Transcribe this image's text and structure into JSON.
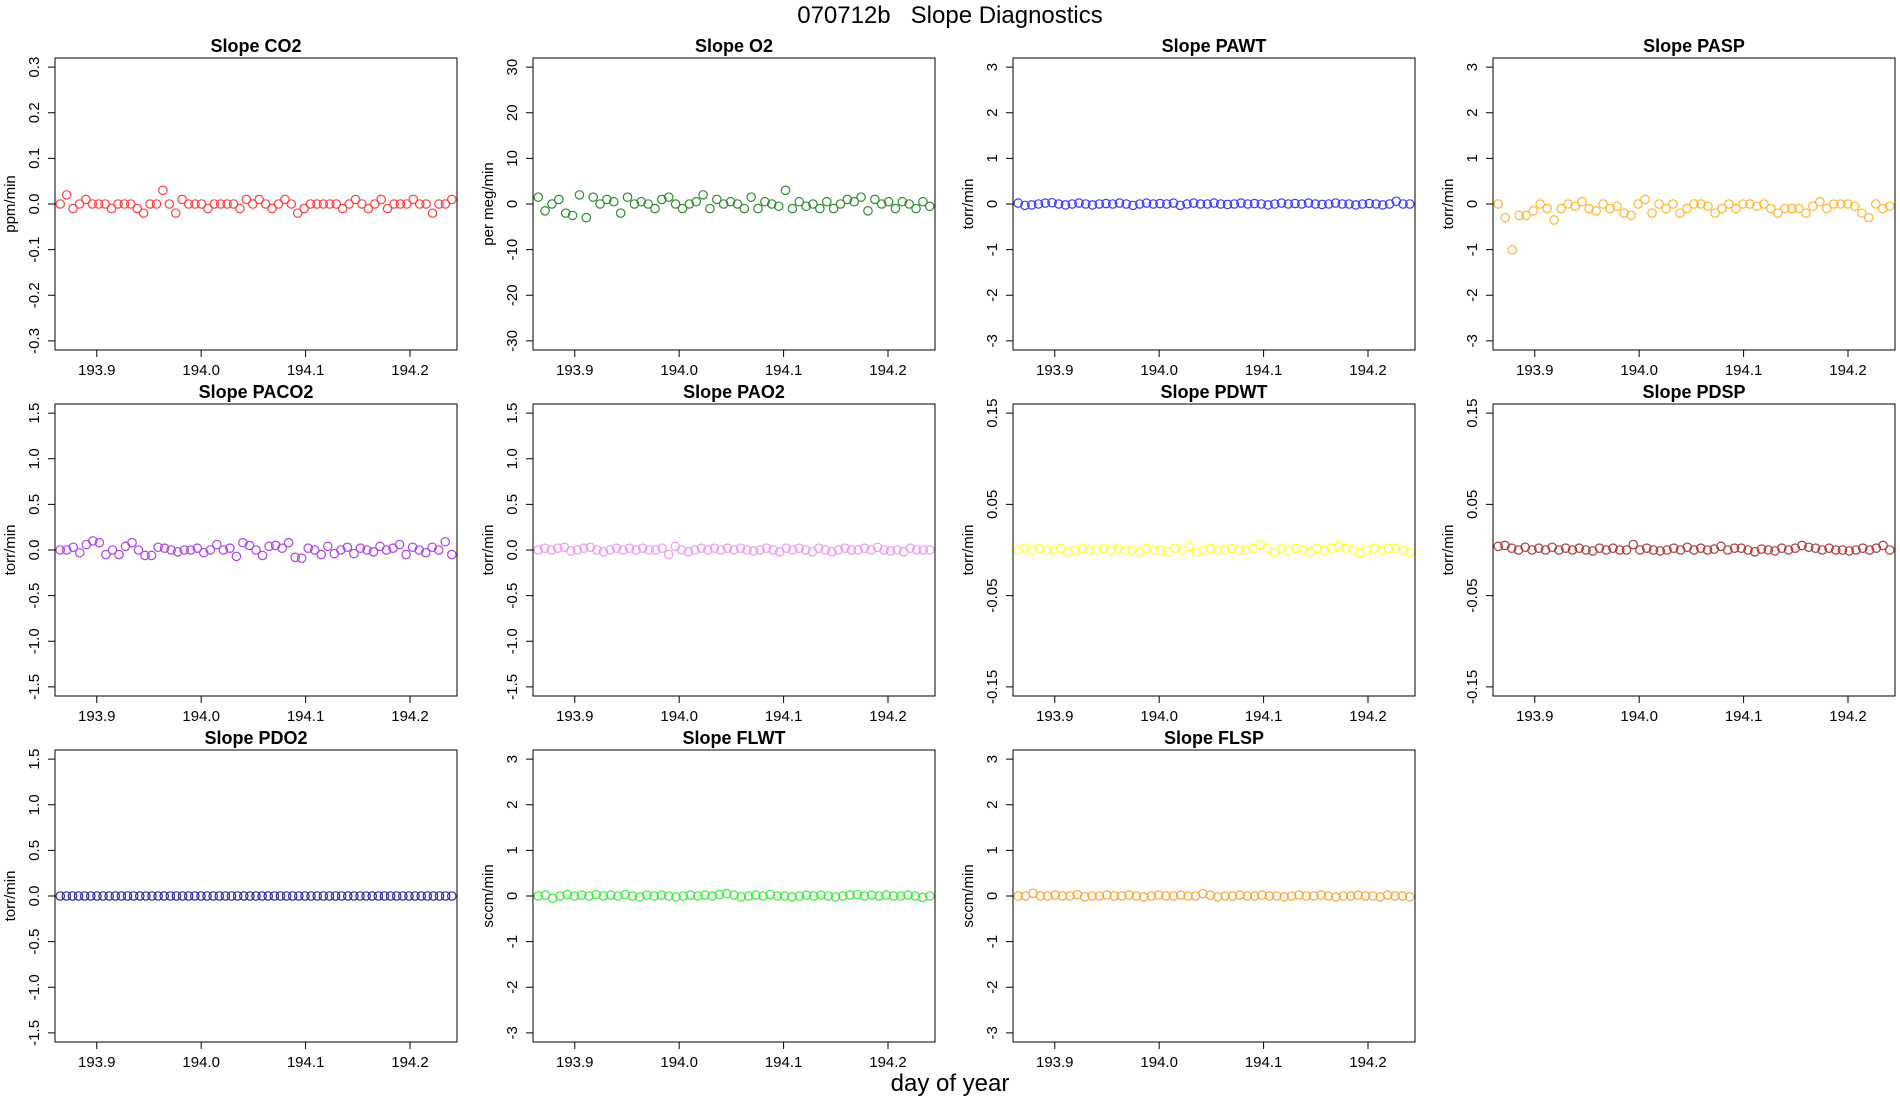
{
  "figure": {
    "title": "070712b   Slope Diagnostics",
    "xlabel": "day of year"
  },
  "chart_data": [
    {
      "type": "scatter",
      "title": "Slope CO2",
      "ylabel": "ppm/min",
      "color": "#ff4040",
      "xlim": [
        193.86,
        194.245
      ],
      "ylim": [
        -0.32,
        0.32
      ],
      "xticks": [
        "193.9",
        "194.0",
        "194.1",
        "194.2"
      ],
      "yticks": [
        "-0.3",
        "-0.2",
        "-0.1",
        "0.0",
        "0.1",
        "0.2",
        "0.3"
      ],
      "y": [
        0.0,
        0.02,
        -0.01,
        0.0,
        0.01,
        0.0,
        0.0,
        0.0,
        -0.01,
        0.0,
        0.0,
        0.0,
        -0.01,
        -0.02,
        0.0,
        0.0,
        0.03,
        0.0,
        -0.02,
        0.01,
        0.0,
        0.0,
        0.0,
        -0.01,
        0.0,
        0.0,
        0.0,
        0.0,
        -0.01,
        0.01,
        0.0,
        0.01,
        0.0,
        -0.01,
        0.0,
        0.01,
        0.0,
        -0.02,
        -0.01,
        0.0,
        0.0,
        0.0,
        0.0,
        0.0,
        -0.01,
        0.0,
        0.01,
        0.0,
        -0.01,
        0.0,
        0.01,
        -0.01,
        0.0,
        0.0,
        0.0,
        0.01,
        0.0,
        0.0,
        -0.02,
        0.0,
        0.0,
        0.01
      ]
    },
    {
      "type": "scatter",
      "title": "Slope O2",
      "ylabel": "per meg/min",
      "color": "#2e8b2e",
      "xlim": [
        193.86,
        194.245
      ],
      "ylim": [
        -32,
        32
      ],
      "xticks": [
        "193.9",
        "194.0",
        "194.1",
        "194.2"
      ],
      "yticks": [
        "-30",
        "-20",
        "-10",
        "0",
        "10",
        "20",
        "30"
      ],
      "y": [
        1.5,
        -1.5,
        0.0,
        1.0,
        -2.0,
        -2.5,
        2.0,
        -3.0,
        1.5,
        0.0,
        1.0,
        0.5,
        -2.0,
        1.5,
        0.0,
        0.5,
        0.0,
        -1.0,
        1.0,
        1.5,
        0.0,
        -1.0,
        0.0,
        0.5,
        2.0,
        -1.0,
        1.0,
        0.0,
        0.5,
        0.0,
        -1.0,
        1.5,
        -1.0,
        0.5,
        0.0,
        -0.5,
        3.0,
        -1.0,
        0.5,
        -0.5,
        0.0,
        -1.0,
        0.5,
        -1.0,
        0.0,
        1.0,
        0.5,
        1.5,
        -1.5,
        1.0,
        0.0,
        0.5,
        -1.0,
        0.5,
        0.0,
        -1.0,
        0.5,
        -0.5
      ]
    },
    {
      "type": "scatter",
      "title": "Slope PAWT",
      "ylabel": "torr/min",
      "color": "#3a3aff",
      "xlim": [
        193.86,
        194.245
      ],
      "ylim": [
        -3.2,
        3.2
      ],
      "xticks": [
        "193.9",
        "194.0",
        "194.1",
        "194.2"
      ],
      "yticks": [
        "-3",
        "-2",
        "-1",
        "0",
        "1",
        "2",
        "3"
      ],
      "y": [
        0.02,
        -0.03,
        -0.02,
        0.0,
        0.02,
        0.03,
        0.0,
        -0.02,
        0.0,
        0.02,
        0.0,
        -0.02,
        0.0,
        0.01,
        0.0,
        0.02,
        0.0,
        -0.03,
        0.0,
        0.02,
        0.0,
        0.01,
        0.0,
        0.02,
        -0.03,
        0.0,
        0.02,
        0.0,
        0.0,
        0.02,
        0.0,
        -0.01,
        0.0,
        0.02,
        0.0,
        0.01,
        0.0,
        -0.02,
        0.0,
        0.02,
        0.0,
        0.01,
        0.0,
        0.02,
        0.0,
        -0.01,
        0.0,
        0.02,
        0.0,
        0.0,
        -0.02,
        0.0,
        0.01,
        0.0,
        -0.02,
        0.0,
        0.06,
        0.0,
        0.0
      ]
    },
    {
      "type": "scatter",
      "title": "Slope PASP",
      "ylabel": "torr/min",
      "color": "#ffb52e",
      "xlim": [
        193.86,
        194.245
      ],
      "ylim": [
        -3.2,
        3.2
      ],
      "xticks": [
        "193.9",
        "194.0",
        "194.1",
        "194.2"
      ],
      "yticks": [
        "-3",
        "-2",
        "-1",
        "0",
        "1",
        "2",
        "3"
      ],
      "y": [
        0.0,
        -0.3,
        -1.0,
        -0.25,
        -0.25,
        -0.15,
        0.0,
        -0.1,
        -0.35,
        -0.1,
        0.0,
        -0.05,
        0.05,
        -0.1,
        -0.15,
        0.0,
        -0.1,
        -0.05,
        -0.2,
        -0.25,
        0.0,
        0.1,
        -0.2,
        0.0,
        -0.1,
        0.0,
        -0.2,
        -0.1,
        0.0,
        0.0,
        -0.05,
        -0.2,
        -0.1,
        0.0,
        -0.1,
        0.0,
        0.0,
        -0.05,
        0.0,
        -0.1,
        -0.2,
        -0.1,
        -0.1,
        -0.1,
        -0.2,
        -0.05,
        0.05,
        -0.1,
        0.0,
        0.0,
        0.0,
        -0.05,
        -0.2,
        -0.3,
        0.0,
        -0.1,
        -0.05
      ]
    },
    {
      "type": "scatter",
      "title": "Slope PACO2",
      "ylabel": "torr/min",
      "color": "#b042e6",
      "xlim": [
        193.86,
        194.245
      ],
      "ylim": [
        -1.6,
        1.6
      ],
      "xticks": [
        "193.9",
        "194.0",
        "194.1",
        "194.2"
      ],
      "yticks": [
        "-1.5",
        "-1.0",
        "-0.5",
        "0.0",
        "0.5",
        "1.0",
        "1.5"
      ],
      "y": [
        0.0,
        0.0,
        0.03,
        -0.03,
        0.06,
        0.1,
        0.08,
        -0.05,
        0.0,
        -0.05,
        0.04,
        0.08,
        0.0,
        -0.06,
        -0.06,
        0.03,
        0.02,
        0.0,
        -0.02,
        0.0,
        0.0,
        0.02,
        -0.03,
        0.0,
        0.06,
        0.0,
        0.02,
        -0.07,
        0.08,
        0.05,
        0.0,
        -0.06,
        0.04,
        0.05,
        0.02,
        0.08,
        -0.08,
        -0.09,
        0.02,
        0.0,
        -0.05,
        0.04,
        -0.04,
        0.0,
        0.03,
        -0.04,
        0.02,
        0.0,
        -0.02,
        0.04,
        0.0,
        0.02,
        0.06,
        -0.05,
        0.03,
        0.0,
        -0.03,
        0.03,
        0.0,
        0.09,
        -0.05
      ]
    },
    {
      "type": "scatter",
      "title": "Slope PAO2",
      "ylabel": "torr/min",
      "color": "#ee99ee",
      "xlim": [
        193.86,
        194.245
      ],
      "ylim": [
        -1.6,
        1.6
      ],
      "xticks": [
        "193.9",
        "194.0",
        "194.1",
        "194.2"
      ],
      "yticks": [
        "-1.5",
        "-1.0",
        "-0.5",
        "0.0",
        "0.5",
        "1.0",
        "1.5"
      ],
      "y": [
        0.0,
        0.02,
        0.0,
        0.02,
        0.03,
        -0.01,
        0.0,
        0.02,
        0.03,
        0.0,
        -0.02,
        0.0,
        0.02,
        0.0,
        0.02,
        0.0,
        0.02,
        0.0,
        0.0,
        0.02,
        -0.05,
        0.04,
        0.0,
        -0.02,
        0.0,
        0.02,
        0.0,
        0.02,
        0.0,
        0.02,
        0.0,
        0.02,
        0.0,
        -0.01,
        0.0,
        0.02,
        0.0,
        -0.02,
        0.02,
        0.0,
        0.02,
        0.0,
        -0.02,
        0.02,
        0.0,
        -0.02,
        0.0,
        0.02,
        0.0,
        0.0,
        0.02,
        0.0,
        0.03,
        0.0,
        -0.01,
        0.0,
        -0.02,
        0.02,
        0.0,
        0.0,
        0.0
      ]
    },
    {
      "type": "scatter",
      "title": "Slope PDWT",
      "ylabel": "torr/min",
      "color": "#ffff33",
      "xlim": [
        193.86,
        194.245
      ],
      "ylim": [
        -0.16,
        0.16
      ],
      "xticks": [
        "193.9",
        "194.0",
        "194.1",
        "194.2"
      ],
      "yticks": [
        "-0.15",
        "-0.05",
        "0.05",
        "0.15"
      ],
      "y": [
        0.0,
        0.002,
        0.0,
        0.002,
        0.0,
        0.0,
        0.002,
        -0.002,
        0.0,
        0.002,
        0.0,
        0.0,
        0.002,
        0.0,
        0.002,
        0.0,
        0.0,
        -0.002,
        0.002,
        0.0,
        0.0,
        -0.002,
        0.002,
        0.0,
        0.004,
        -0.002,
        0.0,
        0.002,
        0.0,
        0.0,
        0.002,
        0.0,
        0.0,
        0.002,
        0.006,
        0.002,
        -0.003,
        0.002,
        0.0,
        0.002,
        0.0,
        -0.002,
        0.002,
        0.0,
        0.002,
        0.004,
        0.002,
        0.0,
        -0.003,
        0.0,
        0.002,
        0.0,
        0.002,
        0.002,
        0.0,
        -0.003
      ]
    },
    {
      "type": "scatter",
      "title": "Slope PDSP",
      "ylabel": "torr/min",
      "color": "#b03a3a",
      "xlim": [
        193.86,
        194.245
      ],
      "ylim": [
        -0.16,
        0.16
      ],
      "xticks": [
        "193.9",
        "194.0",
        "194.1",
        "194.2"
      ],
      "yticks": [
        "-0.15",
        "-0.05",
        "0.05",
        "0.15"
      ],
      "y": [
        0.004,
        0.005,
        0.002,
        0.0,
        0.003,
        0.0,
        0.002,
        0.0,
        0.003,
        0.0,
        0.002,
        0.0,
        0.002,
        0.0,
        -0.001,
        0.002,
        0.0,
        0.002,
        0.0,
        0.0,
        0.006,
        0.0,
        0.002,
        0.0,
        -0.001,
        0.0,
        0.002,
        0.0,
        0.003,
        0.0,
        0.002,
        0.0,
        0.001,
        0.004,
        0.0,
        0.002,
        0.002,
        0.0,
        -0.002,
        0.001,
        0.0,
        -0.001,
        0.002,
        0.0,
        0.002,
        0.005,
        0.003,
        0.002,
        0.0,
        0.002,
        0.0,
        0.0,
        -0.001,
        0.0,
        0.002,
        0.0,
        0.002,
        0.005,
        0.0
      ]
    },
    {
      "type": "scatter",
      "title": "Slope PDO2",
      "ylabel": "torr/min",
      "color": "#2626a8",
      "xlim": [
        193.86,
        194.245
      ],
      "ylim": [
        -1.6,
        1.6
      ],
      "xticks": [
        "193.9",
        "194.0",
        "194.1",
        "194.2"
      ],
      "yticks": [
        "-1.5",
        "-1.0",
        "-0.5",
        "0.0",
        "0.5",
        "1.0",
        "1.5"
      ],
      "y": [
        0,
        0,
        0,
        0,
        0,
        0,
        0,
        0,
        0,
        0,
        0,
        0,
        0,
        0,
        0,
        0,
        0,
        0,
        0,
        0,
        0,
        0,
        0,
        0,
        0,
        0,
        0,
        0,
        0,
        0,
        0,
        0,
        0,
        0,
        0,
        0,
        0,
        0,
        0,
        0,
        0,
        0,
        0,
        0,
        0,
        0,
        0,
        0,
        0,
        0,
        0,
        0,
        0,
        0,
        0,
        0,
        0,
        0,
        0,
        0,
        0,
        0,
        0,
        0,
        0
      ]
    },
    {
      "type": "scatter",
      "title": "Slope FLWT",
      "ylabel": "sccm/min",
      "color": "#33ee33",
      "xlim": [
        193.86,
        194.245
      ],
      "ylim": [
        -3.2,
        3.2
      ],
      "xticks": [
        "193.9",
        "194.0",
        "194.1",
        "194.2"
      ],
      "yticks": [
        "-3",
        "-2",
        "-1",
        "0",
        "1",
        "2",
        "3"
      ],
      "y": [
        0.0,
        0.02,
        -0.05,
        0.0,
        0.03,
        0.0,
        0.02,
        0.0,
        0.03,
        0.0,
        0.02,
        0.0,
        0.03,
        0.0,
        -0.02,
        0.02,
        0.0,
        0.02,
        0.0,
        -0.02,
        0.0,
        0.02,
        0.0,
        0.02,
        0.0,
        0.03,
        0.05,
        0.02,
        -0.02,
        0.0,
        0.02,
        0.0,
        0.03,
        0.0,
        0.0,
        -0.02,
        0.0,
        0.02,
        0.0,
        0.02,
        0.0,
        -0.02,
        0.0,
        0.02,
        0.03,
        0.0,
        0.02,
        0.0,
        0.02,
        0.0,
        0.0,
        0.02,
        0.0,
        -0.03,
        0.0
      ]
    },
    {
      "type": "scatter",
      "title": "Slope FLSP",
      "ylabel": "sccm/min",
      "color": "#ffa033",
      "xlim": [
        193.86,
        194.245
      ],
      "ylim": [
        -3.2,
        3.2
      ],
      "xticks": [
        "193.9",
        "194.0",
        "194.1",
        "194.2"
      ],
      "yticks": [
        "-3",
        "-2",
        "-1",
        "0",
        "1",
        "2",
        "3"
      ],
      "y": [
        0.0,
        0.0,
        0.06,
        0.0,
        0.0,
        0.02,
        0.0,
        0.0,
        0.03,
        -0.02,
        0.0,
        0.0,
        0.02,
        0.0,
        0.0,
        0.02,
        0.0,
        -0.02,
        0.0,
        0.02,
        0.0,
        0.0,
        0.02,
        0.0,
        0.0,
        0.05,
        0.02,
        -0.02,
        0.0,
        0.0,
        0.02,
        0.0,
        0.0,
        0.02,
        0.0,
        0.0,
        -0.02,
        0.0,
        0.02,
        0.0,
        0.0,
        0.02,
        0.0,
        -0.02,
        0.0,
        0.0,
        0.02,
        0.0,
        0.0,
        -0.02,
        0.02,
        0.0,
        0.0,
        -0.02
      ]
    }
  ]
}
